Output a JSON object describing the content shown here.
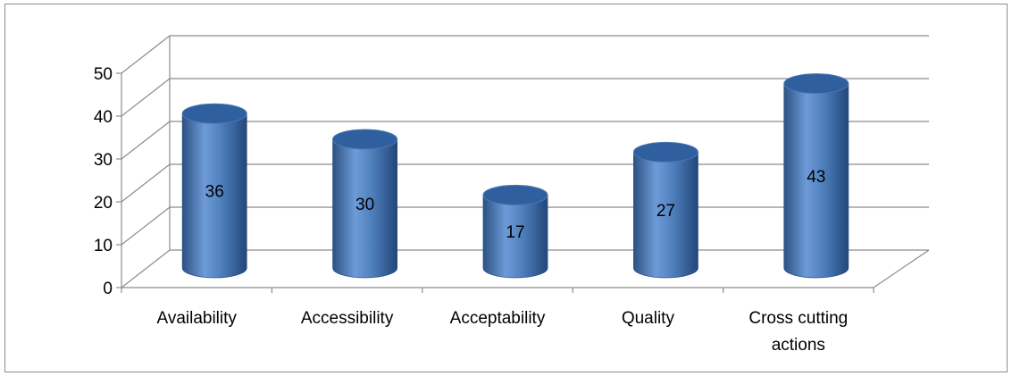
{
  "chart_data": {
    "type": "bar",
    "style": "3d-cylinder",
    "categories": [
      "Availability",
      "Accessibility",
      "Acceptability",
      "Quality",
      "Cross cutting actions"
    ],
    "category_lines": [
      [
        "Availability"
      ],
      [
        "Accessibility"
      ],
      [
        "Acceptability"
      ],
      [
        "Quality"
      ],
      [
        "Cross cutting",
        "actions"
      ]
    ],
    "values": [
      36,
      30,
      17,
      27,
      43
    ],
    "data_labels": [
      "36",
      "30",
      "17",
      "27",
      "43"
    ],
    "ylim": [
      0,
      50
    ],
    "yticks": [
      0,
      10,
      20,
      30,
      40,
      50
    ],
    "ytick_labels": [
      "0",
      "10",
      "20",
      "30",
      "40",
      "50"
    ],
    "grid": true,
    "legend": "none",
    "colors": {
      "bar": "#4f81bd",
      "bar_dark": "#2c5282",
      "bar_light": "#7ea6dc",
      "top": "#2f5f9e",
      "grid": "#8c8c8c"
    }
  }
}
